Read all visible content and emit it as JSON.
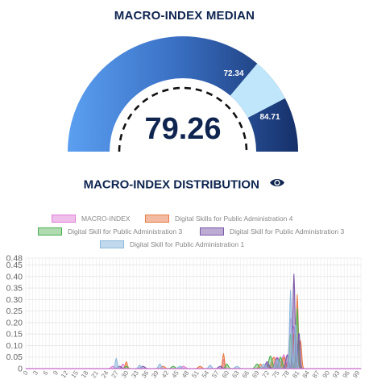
{
  "gauge": {
    "title": "MACRO-INDEX MEDIAN",
    "median_label": "79.26",
    "median_value": 79.26,
    "band_low_label": "72.34",
    "band_high_label": "84.71",
    "band_low": 72.34,
    "band_high": 84.71,
    "range": [
      0,
      100
    ],
    "colors": {
      "outer_light": "#5b9ff0",
      "outer_dark": "#16306a",
      "band": "#bfe6fa",
      "text": "#0f2550"
    }
  },
  "distribution": {
    "title": "MACRO-INDEX DISTRIBUTION",
    "icon": "eye-icon"
  },
  "chart_data": {
    "type": "area",
    "title": "",
    "xlabel": "",
    "ylabel": "",
    "xlim": [
      0,
      100
    ],
    "ylim": [
      0,
      0.48
    ],
    "grid": true,
    "legend_position": "top",
    "y_ticks": [
      "0",
      "0.05",
      "0.10",
      "0.15",
      "0.20",
      "0.25",
      "0.30",
      "0.35",
      "0.40",
      "0.45",
      "0.48"
    ],
    "x_ticks": [
      "0",
      "3",
      "6",
      "9",
      "12",
      "15",
      "18",
      "21",
      "24",
      "27",
      "30",
      "33",
      "36",
      "39",
      "42",
      "45",
      "48",
      "51",
      "54",
      "57",
      "60",
      "63",
      "66",
      "69",
      "72",
      "75",
      "78",
      "81",
      "84",
      "87",
      "90",
      "93",
      "96",
      "99"
    ],
    "series": [
      {
        "name": "MACRO-INDEX",
        "color": "#e07ed8",
        "fill": "rgba(224,126,216,0.45)",
        "peaks": [
          [
            26,
            0.01,
            0.5
          ],
          [
            29,
            0.02,
            0.4
          ],
          [
            47,
            0.01,
            0.6
          ],
          [
            59,
            0.04,
            0.3
          ],
          [
            72,
            0.02,
            0.6
          ],
          [
            75,
            0.05,
            0.7
          ],
          [
            77,
            0.06,
            0.5
          ],
          [
            79,
            0.21,
            0.4
          ],
          [
            80,
            0.17,
            0.4
          ],
          [
            81,
            0.1,
            0.4
          ]
        ]
      },
      {
        "name": "Digital Skills for Public Administration 4",
        "color": "#e87a45",
        "fill": "rgba(232,122,69,0.45)",
        "peaks": [
          [
            30,
            0.03,
            0.3
          ],
          [
            41,
            0.01,
            0.5
          ],
          [
            52,
            0.01,
            0.5
          ],
          [
            59,
            0.065,
            0.28
          ],
          [
            70,
            0.02,
            0.4
          ],
          [
            74,
            0.05,
            0.6
          ],
          [
            77,
            0.05,
            0.5
          ],
          [
            80,
            0.15,
            0.3
          ],
          [
            81,
            0.32,
            0.28
          ],
          [
            82,
            0.12,
            0.3
          ]
        ]
      },
      {
        "name": "Digital Skill for Public Administration 3",
        "color": "#4caf50",
        "fill": "rgba(76,175,80,0.40)",
        "peaks": [
          [
            30,
            0.01,
            0.4
          ],
          [
            44,
            0.01,
            0.5
          ],
          [
            60,
            0.02,
            0.4
          ],
          [
            69,
            0.02,
            0.5
          ],
          [
            73,
            0.055,
            0.5
          ],
          [
            76,
            0.05,
            0.5
          ],
          [
            79,
            0.15,
            0.35
          ],
          [
            81,
            0.26,
            0.3
          ]
        ]
      },
      {
        "name": "Digital Skill for Public Administration 3",
        "color": "#7a58a8",
        "fill": "rgba(122,88,168,0.45)",
        "peaks": [
          [
            28,
            0.01,
            0.5
          ],
          [
            35,
            0.01,
            0.5
          ],
          [
            58,
            0.01,
            0.5
          ],
          [
            72,
            0.03,
            0.5
          ],
          [
            75,
            0.045,
            0.5
          ],
          [
            78,
            0.06,
            0.4
          ],
          [
            80,
            0.41,
            0.32
          ],
          [
            81.5,
            0.16,
            0.3
          ]
        ]
      },
      {
        "name": "Digital Skill for Public Administration 1",
        "color": "#8fb8dc",
        "fill": "rgba(143,184,220,0.55)",
        "peaks": [
          [
            27,
            0.045,
            0.3
          ],
          [
            34,
            0.015,
            0.4
          ],
          [
            40,
            0.02,
            0.4
          ],
          [
            46,
            0.01,
            0.5
          ],
          [
            55,
            0.015,
            0.4
          ],
          [
            63,
            0.01,
            0.5
          ],
          [
            71,
            0.02,
            0.5
          ],
          [
            75,
            0.04,
            0.5
          ],
          [
            79,
            0.34,
            0.3
          ],
          [
            80.5,
            0.2,
            0.3
          ]
        ]
      }
    ]
  }
}
